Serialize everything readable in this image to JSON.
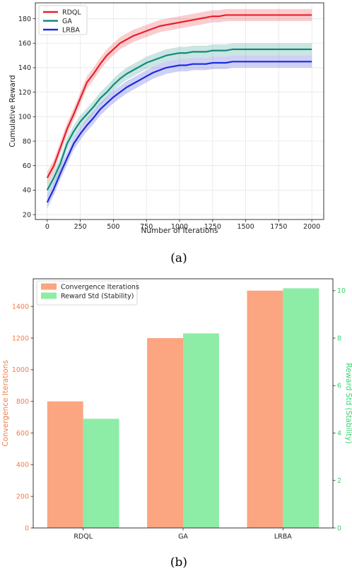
{
  "captions": {
    "a": "(a)",
    "b": "(b)"
  },
  "chart_data": [
    {
      "type": "line",
      "title": "",
      "xlabel": "Number of Iterations",
      "ylabel": "Cumulative Reward",
      "xlim": [
        -90,
        2090
      ],
      "ylim": [
        16,
        193
      ],
      "xticks": [
        0,
        250,
        500,
        750,
        1000,
        1250,
        1500,
        1750,
        2000
      ],
      "yticks": [
        20,
        40,
        60,
        80,
        100,
        120,
        140,
        160,
        180
      ],
      "grid": true,
      "legend": "top-left",
      "band_halfwidth": 5,
      "series": [
        {
          "name": "RDQL",
          "color": "#e8202a",
          "x": [
            0,
            50,
            100,
            150,
            200,
            250,
            300,
            350,
            400,
            450,
            500,
            550,
            600,
            650,
            700,
            750,
            800,
            850,
            900,
            950,
            1000,
            1050,
            1100,
            1150,
            1200,
            1250,
            1300,
            1350,
            1400,
            1500,
            1750,
            2000
          ],
          "y": [
            50,
            60,
            75,
            90,
            102,
            115,
            128,
            135,
            143,
            150,
            155,
            160,
            163,
            166,
            168,
            170,
            172,
            174,
            175,
            176,
            177,
            178,
            179,
            180,
            181,
            182,
            182,
            183,
            183,
            183,
            183,
            183
          ]
        },
        {
          "name": "GA",
          "color": "#128a7d",
          "x": [
            0,
            50,
            100,
            150,
            200,
            250,
            300,
            350,
            400,
            450,
            500,
            550,
            600,
            650,
            700,
            750,
            800,
            850,
            900,
            950,
            1000,
            1050,
            1100,
            1150,
            1200,
            1250,
            1300,
            1350,
            1400,
            1500,
            1750,
            2000
          ],
          "y": [
            40,
            50,
            62,
            78,
            88,
            96,
            102,
            108,
            115,
            120,
            126,
            131,
            135,
            138,
            141,
            144,
            146,
            148,
            150,
            151,
            152,
            152,
            153,
            153,
            153,
            154,
            154,
            154,
            155,
            155,
            155,
            155
          ]
        },
        {
          "name": "LRBA",
          "color": "#1e2bd8",
          "x": [
            0,
            50,
            100,
            150,
            200,
            250,
            300,
            350,
            400,
            450,
            500,
            550,
            600,
            650,
            700,
            750,
            800,
            850,
            900,
            950,
            1000,
            1050,
            1100,
            1150,
            1200,
            1250,
            1300,
            1350,
            1400,
            1500,
            1750,
            2000
          ],
          "y": [
            30,
            41,
            54,
            66,
            78,
            86,
            93,
            99,
            106,
            111,
            116,
            120,
            124,
            127,
            130,
            133,
            136,
            138,
            140,
            141,
            142,
            142,
            143,
            143,
            143,
            144,
            144,
            144,
            145,
            145,
            145,
            145
          ]
        }
      ]
    },
    {
      "type": "bar",
      "title": "",
      "categories": [
        "RDQL",
        "GA",
        "LRBA"
      ],
      "xlabel": "",
      "ylabel": "Convergence Iterations",
      "ylabel_right": "Reward Std (Stability)",
      "ylim": [
        0,
        1575
      ],
      "ylim_right": [
        0,
        10.5
      ],
      "yticks": [
        0,
        200,
        400,
        600,
        800,
        1000,
        1200,
        1400
      ],
      "yticks_right": [
        0,
        2,
        4,
        6,
        8,
        10
      ],
      "legend": "top-left",
      "left_color": "#f47c45",
      "right_color": "#35d46c",
      "series": [
        {
          "name": "Convergence Iterations",
          "axis": "left",
          "color": "#fca581",
          "values": [
            800,
            1200,
            1500
          ]
        },
        {
          "name": "Reward Std (Stability)",
          "axis": "right",
          "color": "#8deca5",
          "values": [
            4.6,
            8.2,
            10.1
          ]
        }
      ]
    }
  ]
}
